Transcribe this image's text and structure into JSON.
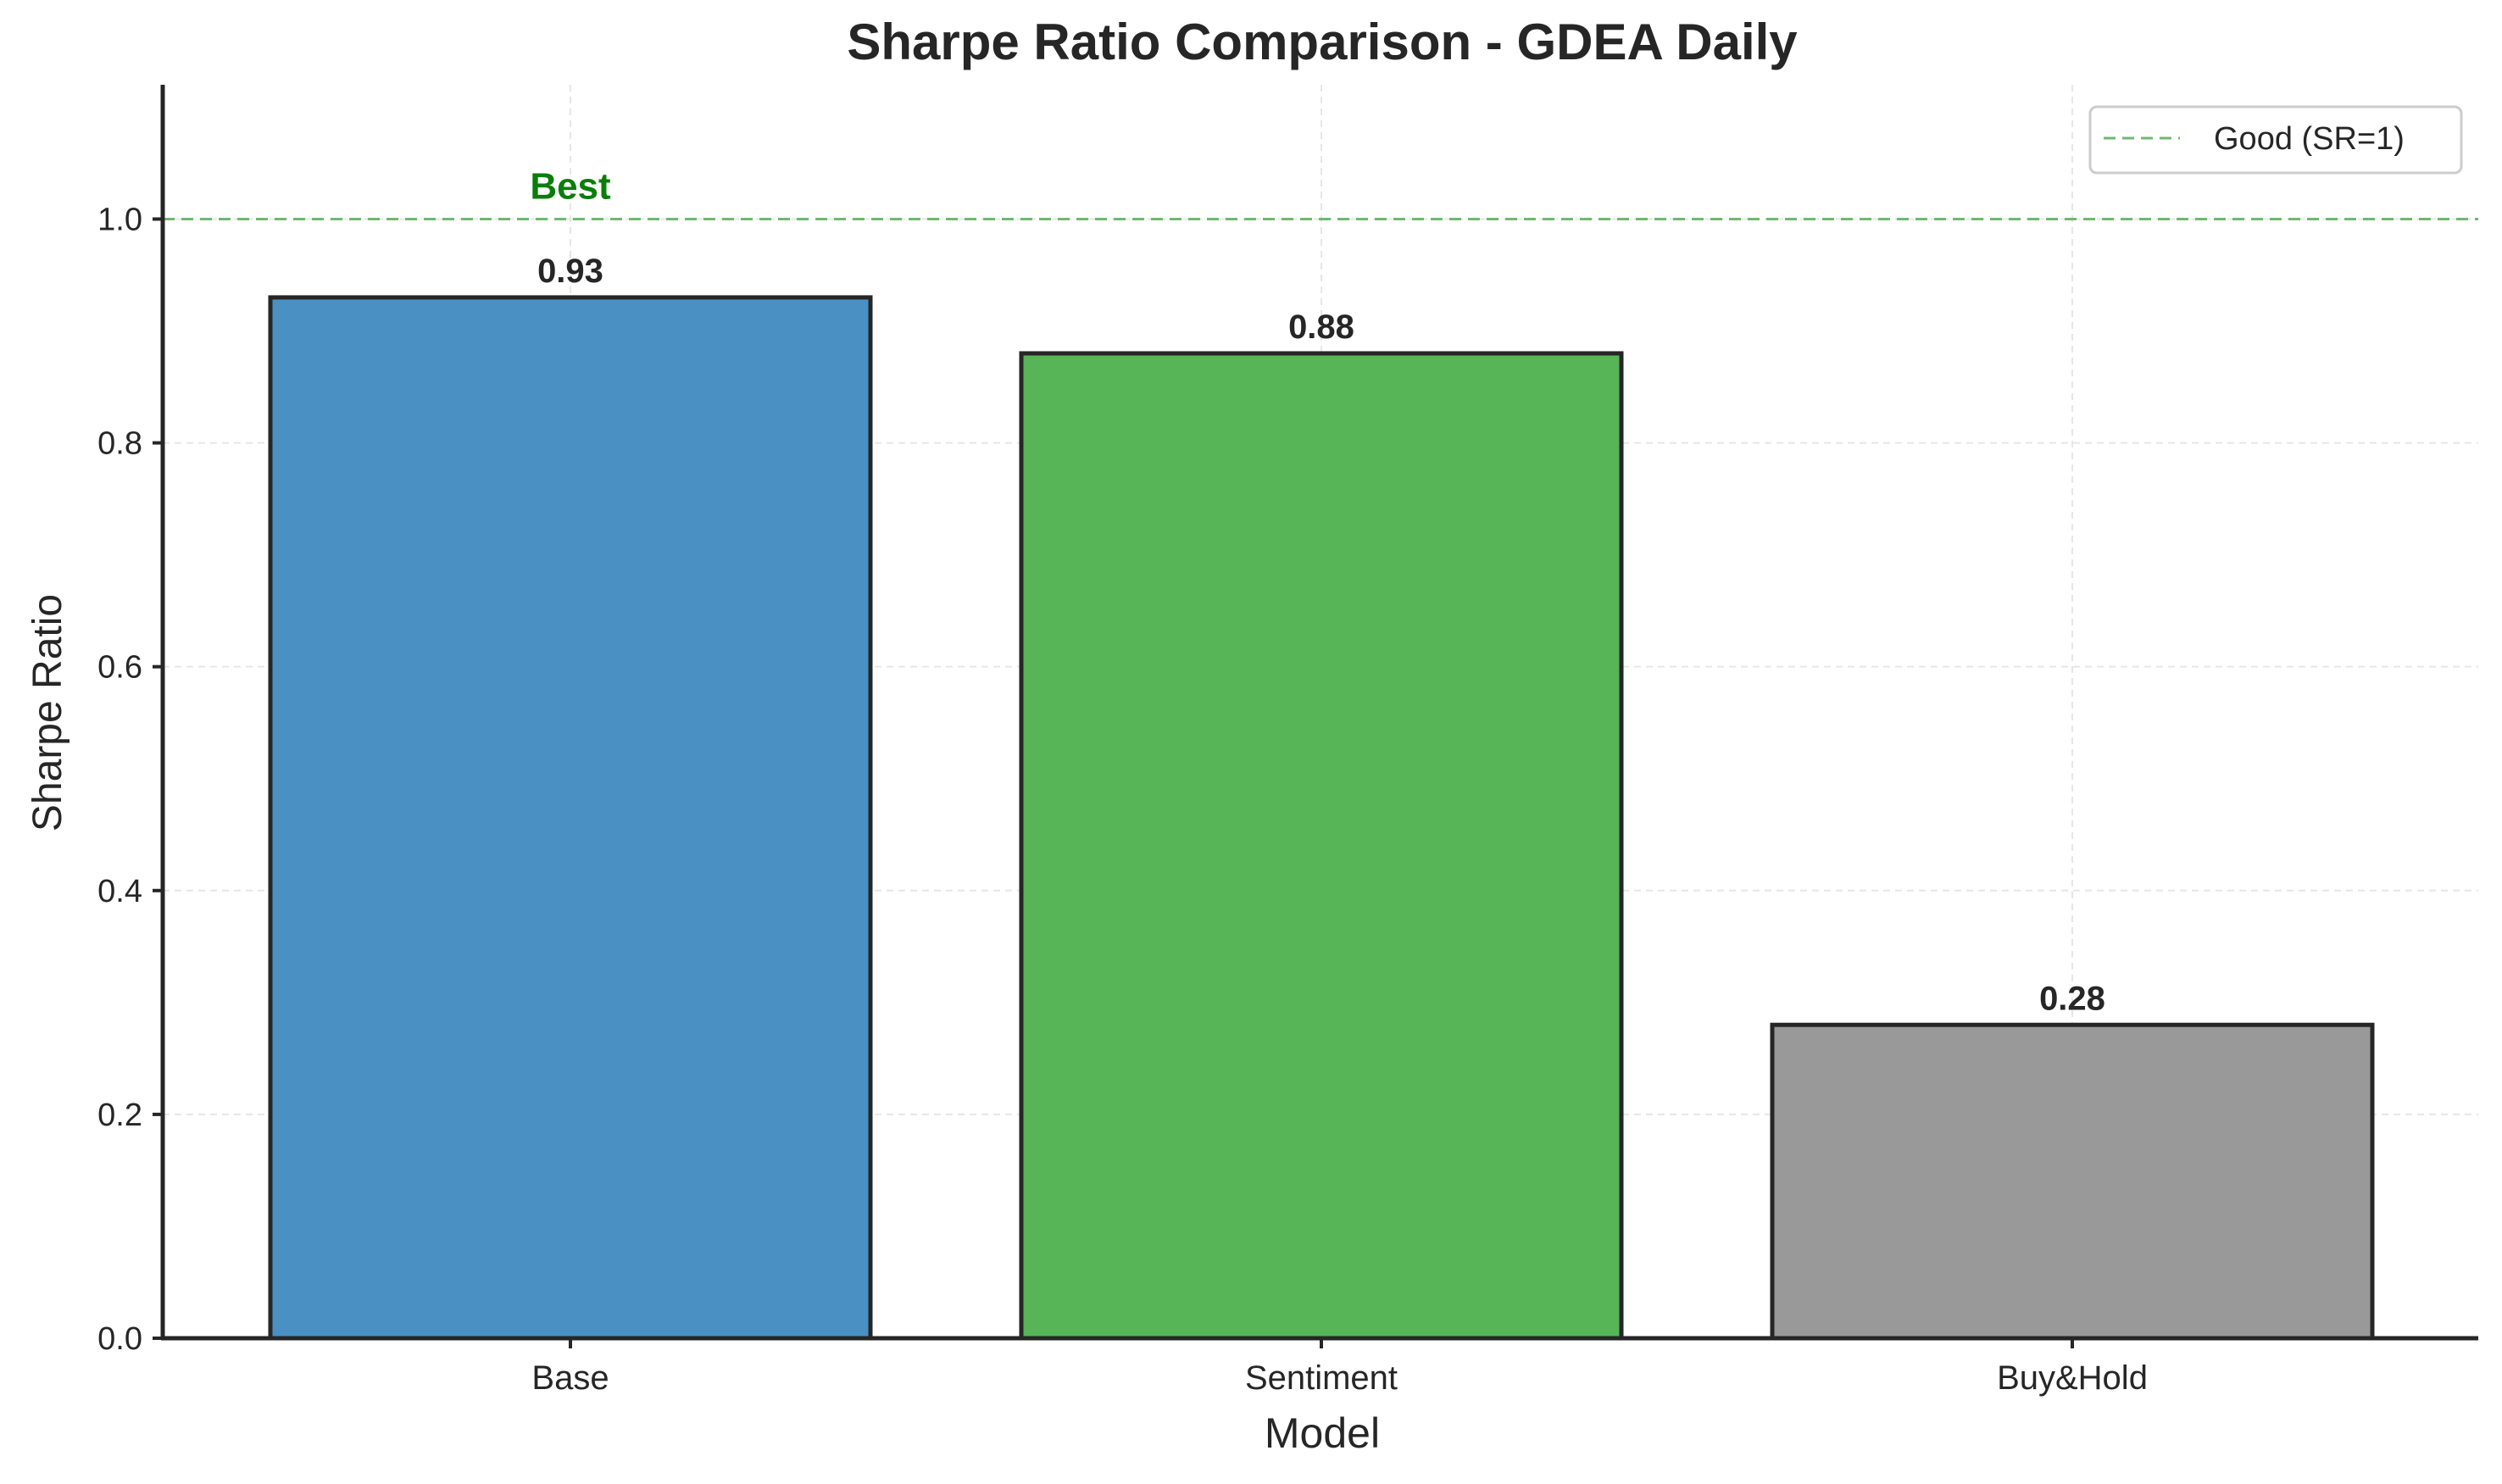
{
  "chart_data": {
    "type": "bar",
    "title": "Sharpe Ratio Comparison - GDEA Daily",
    "xlabel": "Model",
    "ylabel": "Sharpe Ratio",
    "categories": [
      "Base",
      "Sentiment",
      "Buy&Hold"
    ],
    "values": [
      0.93,
      0.88,
      0.28
    ],
    "value_labels": [
      "0.93",
      "0.88",
      "0.28"
    ],
    "colors": [
      "#4a90c2",
      "#57b457",
      "#999999"
    ],
    "ylim": [
      0,
      1.12
    ],
    "yticks": [
      0.0,
      0.2,
      0.4,
      0.6,
      0.8,
      1.0
    ],
    "ytick_labels": [
      "0.0",
      "0.2",
      "0.4",
      "0.6",
      "0.8",
      "1.0"
    ],
    "grid": true,
    "reference_line": {
      "value": 1.0,
      "label": "Good (SR=1)",
      "color": "#6fb96f"
    },
    "annotation": {
      "text": "Best",
      "category": "Base",
      "color": "#0b7d0b"
    },
    "legend": {
      "position": "top-right",
      "entries": [
        "Good (SR=1)"
      ]
    }
  }
}
